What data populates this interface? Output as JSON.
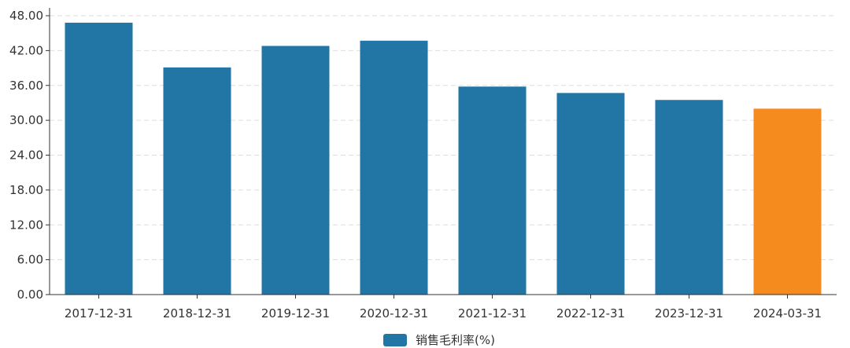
{
  "chart_data": {
    "type": "bar",
    "categories": [
      "2017-12-31",
      "2018-12-31",
      "2019-12-31",
      "2020-12-31",
      "2021-12-31",
      "2022-12-31",
      "2023-12-31",
      "2024-03-31"
    ],
    "series": [
      {
        "name": "销售毛利率(%)",
        "values": [
          46.8,
          39.1,
          42.8,
          43.7,
          35.8,
          34.7,
          33.5,
          32.0
        ],
        "color": "#2276a6",
        "highlight_color": "#f58a1f",
        "highlight_index": 7
      }
    ],
    "ylim": [
      0,
      48
    ],
    "yticks": [
      "0.00",
      "6.00",
      "12.00",
      "18.00",
      "24.00",
      "30.00",
      "36.00",
      "42.00",
      "48.00"
    ],
    "grid": true,
    "legend_position": "bottom-center"
  }
}
